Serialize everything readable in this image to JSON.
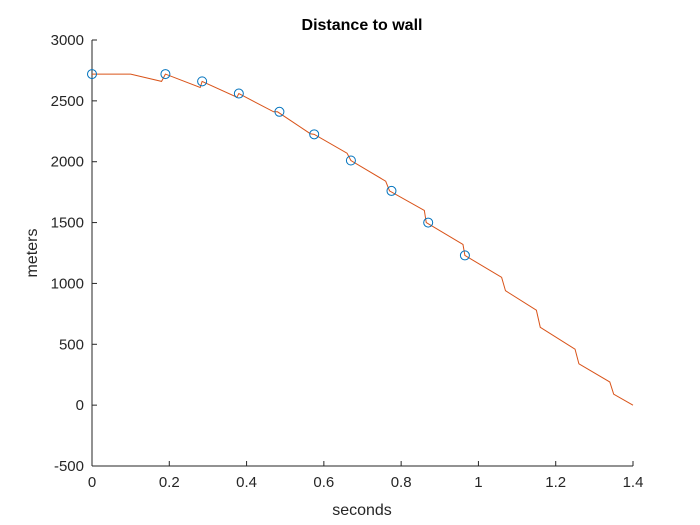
{
  "chart_data": {
    "type": "line",
    "title": "Distance to wall",
    "xlabel": "seconds",
    "ylabel": "meters",
    "xlim": [
      0,
      1.4
    ],
    "ylim": [
      -500,
      3000
    ],
    "xticks": [
      0,
      0.2,
      0.4,
      0.6,
      0.8,
      1,
      1.2,
      1.4
    ],
    "xtick_labels": [
      "0",
      "0.2",
      "0.4",
      "0.6",
      "0.8",
      "1",
      "1.2",
      "1.4"
    ],
    "yticks": [
      -500,
      0,
      500,
      1000,
      1500,
      2000,
      2500,
      3000
    ],
    "ytick_labels": [
      "-500",
      "0",
      "500",
      "1000",
      "1500",
      "2000",
      "2500",
      "3000"
    ],
    "grid": false,
    "legend": "none",
    "series": [
      {
        "type": "scatter",
        "marker": "circle-open",
        "color": "#0072BD",
        "x": [
          0.0,
          0.19,
          0.285,
          0.38,
          0.485,
          0.575,
          0.67,
          0.775,
          0.87,
          0.965
        ],
        "y": [
          2720,
          2720,
          2660,
          2560,
          2410,
          2225,
          2010,
          1760,
          1500,
          1230
        ]
      },
      {
        "type": "line",
        "color": "#D95319",
        "x": [
          0.0,
          0.1,
          0.18,
          0.19,
          0.28,
          0.285,
          0.375,
          0.38,
          0.47,
          0.48,
          0.565,
          0.575,
          0.66,
          0.67,
          0.76,
          0.77,
          0.86,
          0.865,
          0.96,
          0.965,
          1.06,
          1.07,
          1.15,
          1.16,
          1.25,
          1.26,
          1.34,
          1.35,
          1.4
        ],
        "y": [
          2720,
          2720,
          2660,
          2720,
          2610,
          2660,
          2530,
          2560,
          2410,
          2410,
          2230,
          2225,
          2070,
          2010,
          1840,
          1760,
          1600,
          1500,
          1320,
          1230,
          1050,
          940,
          780,
          640,
          460,
          340,
          190,
          90,
          0
        ]
      }
    ]
  }
}
